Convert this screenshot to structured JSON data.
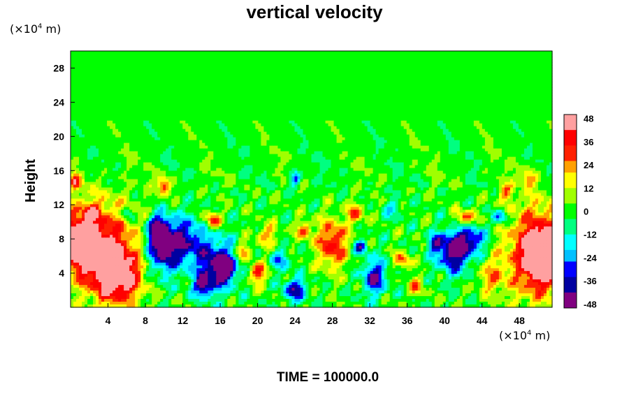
{
  "chart_data": {
    "type": "heatmap",
    "title": "vertical velocity",
    "ylabel": "Height",
    "unit_prefix": "(×10",
    "unit_exp": "4",
    "unit_suffix": " m)",
    "footer": "TIME = 100000.0",
    "xlim": [
      0,
      51.5
    ],
    "ylim": [
      0,
      30
    ],
    "x_ticks": [
      4,
      8,
      12,
      16,
      20,
      24,
      28,
      32,
      36,
      40,
      44,
      48
    ],
    "y_ticks": [
      4,
      8,
      12,
      16,
      20,
      24,
      28
    ],
    "colorbar": {
      "min": -50,
      "max": 50,
      "ticks": [
        48,
        36,
        24,
        12,
        0,
        -12,
        -24,
        -36,
        -48
      ]
    },
    "features": [
      {
        "x": 3.0,
        "y": 7.5,
        "rx": 4.0,
        "ry": 5.0,
        "v": 40
      },
      {
        "x": 5.0,
        "y": 3.5,
        "rx": 2.5,
        "ry": 3.2,
        "v": 50
      },
      {
        "x": 1.0,
        "y": 7.5,
        "rx": 1.8,
        "ry": 3.0,
        "v": 42
      },
      {
        "x": 0.5,
        "y": 14.8,
        "rx": 0.6,
        "ry": 0.9,
        "v": 30
      },
      {
        "x": 2.2,
        "y": 11.2,
        "rx": 0.8,
        "ry": 0.8,
        "v": 22
      },
      {
        "x": 10.0,
        "y": 7.0,
        "rx": 1.8,
        "ry": 3.0,
        "v": -50
      },
      {
        "x": 9.3,
        "y": 9.0,
        "rx": 1.0,
        "ry": 1.6,
        "v": -46
      },
      {
        "x": 12.5,
        "y": 8.0,
        "rx": 1.8,
        "ry": 2.5,
        "v": -32
      },
      {
        "x": 15.5,
        "y": 5.0,
        "rx": 2.2,
        "ry": 3.0,
        "v": -42
      },
      {
        "x": 16.5,
        "y": 4.5,
        "rx": 0.9,
        "ry": 1.3,
        "v": -50
      },
      {
        "x": 14.2,
        "y": 2.5,
        "rx": 1.0,
        "ry": 1.2,
        "v": -38
      },
      {
        "x": 10.0,
        "y": 14.2,
        "rx": 0.7,
        "ry": 1.1,
        "v": 34
      },
      {
        "x": 15.2,
        "y": 10.2,
        "rx": 0.8,
        "ry": 1.0,
        "v": 36
      },
      {
        "x": 18.5,
        "y": 6.5,
        "rx": 0.8,
        "ry": 1.0,
        "v": 28
      },
      {
        "x": 20.0,
        "y": 4.0,
        "rx": 0.9,
        "ry": 1.2,
        "v": 36
      },
      {
        "x": 21.0,
        "y": 8.5,
        "rx": 1.2,
        "ry": 1.4,
        "v": 20
      },
      {
        "x": 24.0,
        "y": 2.0,
        "rx": 1.2,
        "ry": 1.3,
        "v": -40
      },
      {
        "x": 22.5,
        "y": 5.5,
        "rx": 1.0,
        "ry": 1.2,
        "v": -24
      },
      {
        "x": 24.0,
        "y": 15.0,
        "rx": 0.6,
        "ry": 0.9,
        "v": -30
      },
      {
        "x": 25.0,
        "y": 9.0,
        "rx": 0.8,
        "ry": 1.0,
        "v": 28
      },
      {
        "x": 28.0,
        "y": 7.5,
        "rx": 1.6,
        "ry": 2.8,
        "v": 38
      },
      {
        "x": 30.5,
        "y": 11.0,
        "rx": 0.9,
        "ry": 1.2,
        "v": 28
      },
      {
        "x": 31.0,
        "y": 7.0,
        "rx": 0.7,
        "ry": 0.9,
        "v": -34
      },
      {
        "x": 32.5,
        "y": 3.5,
        "rx": 1.2,
        "ry": 2.0,
        "v": -42
      },
      {
        "x": 35.5,
        "y": 5.5,
        "rx": 0.8,
        "ry": 1.0,
        "v": 30
      },
      {
        "x": 37.0,
        "y": 2.5,
        "rx": 0.8,
        "ry": 1.0,
        "v": 26
      },
      {
        "x": 39.0,
        "y": 7.5,
        "rx": 0.8,
        "ry": 1.0,
        "v": -28
      },
      {
        "x": 41.0,
        "y": 6.5,
        "rx": 1.8,
        "ry": 2.4,
        "v": -50
      },
      {
        "x": 43.0,
        "y": 8.0,
        "rx": 1.5,
        "ry": 1.5,
        "v": -34
      },
      {
        "x": 42.2,
        "y": 10.5,
        "rx": 1.0,
        "ry": 0.9,
        "v": 32
      },
      {
        "x": 46.0,
        "y": 10.5,
        "rx": 0.8,
        "ry": 0.9,
        "v": -30
      },
      {
        "x": 46.5,
        "y": 13.5,
        "rx": 0.7,
        "ry": 0.9,
        "v": 24
      },
      {
        "x": 50.0,
        "y": 6.5,
        "rx": 3.5,
        "ry": 5.5,
        "v": 42
      },
      {
        "x": 50.5,
        "y": 6.0,
        "rx": 1.6,
        "ry": 2.8,
        "v": 52
      },
      {
        "x": 49.0,
        "y": 15.0,
        "rx": 0.7,
        "ry": 1.0,
        "v": 24
      },
      {
        "x": 45.0,
        "y": 3.5,
        "rx": 1.5,
        "ry": 2.0,
        "v": 18
      },
      {
        "x": 6.0,
        "y": 11.0,
        "rx": 0.7,
        "ry": 0.8,
        "v": -22
      },
      {
        "x": 34.5,
        "y": 11.5,
        "rx": 1.0,
        "ry": 1.0,
        "v": -16
      }
    ],
    "colors": [
      "#800080",
      "#0000a0",
      "#0000ff",
      "#00c0ff",
      "#00ffff",
      "#00ff80",
      "#00ff00",
      "#a0ff00",
      "#ffff00",
      "#ffa000",
      "#ff2000",
      "#ff0000",
      "#ffa0a0"
    ]
  }
}
